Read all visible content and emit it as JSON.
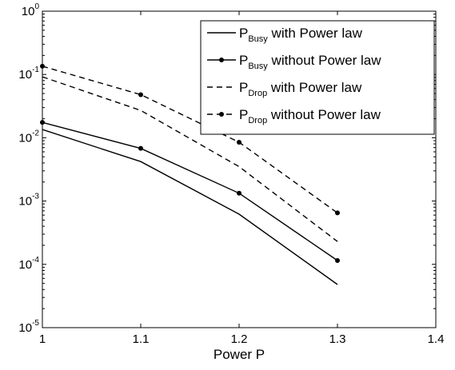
{
  "chart_data": {
    "type": "line",
    "title": "",
    "xlabel": "Power P",
    "ylabel": "",
    "xlim": [
      1,
      1.4
    ],
    "ylim": [
      1e-05,
      1
    ],
    "yscale": "log",
    "grid": false,
    "legend_position": "top-right",
    "x_ticks": [
      {
        "value": 1,
        "label": "1"
      },
      {
        "value": 1.1,
        "label": "1.1"
      },
      {
        "value": 1.2,
        "label": "1.2"
      },
      {
        "value": 1.3,
        "label": "1.3"
      },
      {
        "value": 1.4,
        "label": "1.4"
      }
    ],
    "y_ticks": [
      {
        "value": 1e-05,
        "base": "10",
        "exp": "-5"
      },
      {
        "value": 0.0001,
        "base": "10",
        "exp": "-4"
      },
      {
        "value": 0.001,
        "base": "10",
        "exp": "-3"
      },
      {
        "value": 0.01,
        "base": "10",
        "exp": "-2"
      },
      {
        "value": 0.1,
        "base": "10",
        "exp": "-1"
      },
      {
        "value": 1,
        "base": "10",
        "exp": "0"
      }
    ],
    "x": [
      1,
      1.1,
      1.2,
      1.3
    ],
    "series": [
      {
        "name": "P Busy with Power law",
        "legend": {
          "main": "P",
          "sub": "Busy",
          "rest": " with Power law"
        },
        "style": "solid",
        "marker": false,
        "color": "#000000",
        "values": [
          0.0135,
          0.0042,
          0.00062,
          4.8e-05
        ]
      },
      {
        "name": "P Busy without Power law",
        "legend": {
          "main": "P",
          "sub": "Busy",
          "rest": " without Power law"
        },
        "style": "solid",
        "marker": true,
        "color": "#000000",
        "values": [
          0.0175,
          0.0068,
          0.00133,
          0.000115
        ]
      },
      {
        "name": "P Drop with Power law",
        "legend": {
          "main": "P",
          "sub": "Drop",
          "rest": " with Power law"
        },
        "style": "dashed",
        "marker": false,
        "color": "#000000",
        "values": [
          0.092,
          0.027,
          0.0035,
          0.00023
        ]
      },
      {
        "name": "P Drop without Power law",
        "legend": {
          "main": "P",
          "sub": "Drop",
          "rest": " without Power law"
        },
        "style": "dashed",
        "marker": true,
        "color": "#000000",
        "values": [
          0.135,
          0.048,
          0.0085,
          0.00065
        ]
      }
    ]
  }
}
